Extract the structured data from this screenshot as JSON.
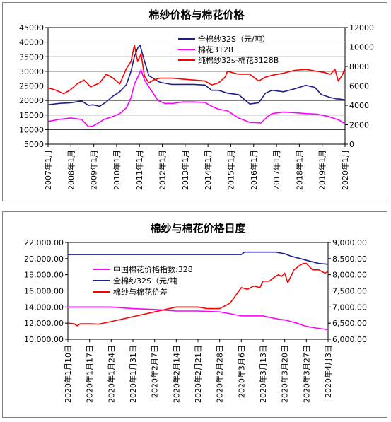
{
  "colors": {
    "navy": "#1f1f8c",
    "magenta": "#ff00ff",
    "red": "#ff0000",
    "axis": "#000000",
    "grid": "#000000"
  },
  "chart_data": [
    {
      "type": "line",
      "title": "棉纱价格与棉花价格",
      "x_tick_labels": [
        "2007年1月",
        "2008年1月",
        "2009年1月",
        "2010年1月",
        "2011年1月",
        "2012年1月",
        "2013年1月",
        "2014年1月",
        "2015年1月",
        "2016年1月",
        "2017年1月",
        "2018年1月",
        "2019年1月",
        "2020年1月"
      ],
      "y_left": {
        "ticks": [
          5000,
          10000,
          15000,
          20000,
          25000,
          30000,
          35000,
          40000,
          45000
        ],
        "ylim": [
          5000,
          45000
        ]
      },
      "y_right": {
        "ticks": [
          0,
          2000,
          4000,
          6000,
          8000,
          10000,
          12000
        ],
        "ylim": [
          0,
          12000
        ]
      },
      "legend_position": "top-right",
      "grid": "horizontal",
      "series": [
        {
          "name": "全棉纱32S（元/吨）",
          "axis": "left",
          "color": "#1f1f8c",
          "x": [
            2007.0,
            2007.5,
            2008.0,
            2008.5,
            2008.8,
            2009.0,
            2009.3,
            2009.6,
            2009.9,
            2010.2,
            2010.5,
            2010.7,
            2010.85,
            2011.0,
            2011.1,
            2011.3,
            2011.5,
            2011.8,
            2012.0,
            2012.5,
            2013.0,
            2013.5,
            2014.0,
            2014.3,
            2014.6,
            2015.0,
            2015.5,
            2016.0,
            2016.4,
            2016.7,
            2017.0,
            2017.5,
            2018.0,
            2018.5,
            2018.9,
            2019.2,
            2019.6,
            2019.9,
            2020.0,
            2020.25
          ],
          "y": [
            18500,
            19000,
            19200,
            19800,
            18300,
            18500,
            18000,
            19500,
            21500,
            23000,
            25500,
            30000,
            35000,
            38000,
            39000,
            33500,
            28500,
            27000,
            26200,
            25500,
            25500,
            25500,
            25300,
            23500,
            23500,
            22500,
            22000,
            18800,
            19200,
            22500,
            23500,
            23000,
            24000,
            25200,
            24500,
            22000,
            21000,
            20500,
            20500,
            20200
          ]
        },
        {
          "name": "棉花3128",
          "axis": "left",
          "color": "#ff00ff",
          "x": [
            2007.0,
            2007.5,
            2008.0,
            2008.5,
            2008.8,
            2009.0,
            2009.5,
            2009.9,
            2010.2,
            2010.5,
            2010.7,
            2010.85,
            2011.0,
            2011.15,
            2011.3,
            2011.6,
            2011.9,
            2012.2,
            2012.6,
            2013.0,
            2013.5,
            2014.0,
            2014.3,
            2014.6,
            2015.0,
            2015.5,
            2016.0,
            2016.5,
            2016.8,
            2017.0,
            2017.5,
            2018.0,
            2018.5,
            2019.0,
            2019.5,
            2019.9,
            2020.0,
            2020.25
          ],
          "y": [
            12800,
            13500,
            14000,
            13500,
            11000,
            11200,
            13500,
            14500,
            15500,
            17500,
            21000,
            25500,
            28000,
            30500,
            27000,
            23500,
            20000,
            19000,
            19000,
            19500,
            19500,
            19300,
            18000,
            17000,
            16500,
            14000,
            12500,
            12300,
            14500,
            15500,
            16000,
            15800,
            15500,
            15300,
            14500,
            13500,
            13200,
            12000
          ]
        },
        {
          "name": "纯棉纱32s-棉花3128B",
          "axis": "right",
          "color": "#ff0000",
          "x": [
            2007.0,
            2007.3,
            2007.7,
            2008.0,
            2008.3,
            2008.6,
            2008.9,
            2009.0,
            2009.3,
            2009.6,
            2009.9,
            2010.2,
            2010.5,
            2010.7,
            2010.85,
            2011.0,
            2011.15,
            2011.3,
            2011.5,
            2011.7,
            2012.0,
            2012.5,
            2013.0,
            2013.5,
            2014.0,
            2014.3,
            2014.6,
            2014.9,
            2015.0,
            2015.5,
            2016.0,
            2016.4,
            2016.7,
            2017.0,
            2017.5,
            2018.0,
            2018.5,
            2019.0,
            2019.3,
            2019.6,
            2019.8,
            2019.95,
            2020.1,
            2020.25
          ],
          "y": [
            5800,
            5600,
            5200,
            5600,
            6200,
            6600,
            5900,
            6000,
            6300,
            7200,
            6800,
            6200,
            7800,
            8500,
            10200,
            8500,
            9300,
            7000,
            6300,
            6600,
            6800,
            6800,
            6700,
            6600,
            6500,
            6100,
            6300,
            6900,
            7500,
            7200,
            7200,
            6500,
            6900,
            7100,
            7300,
            7600,
            7700,
            7500,
            7400,
            7200,
            7700,
            6500,
            7000,
            7800
          ]
        }
      ]
    },
    {
      "type": "line",
      "title": "棉纱与棉花价格日度",
      "x_tick_labels": [
        "2020年1月10日",
        "2020年1月17日",
        "2020年1月24日",
        "2020年1月31日",
        "2020年2月7日",
        "2020年2月14日",
        "2020年2月21日",
        "2020年2月28日",
        "2020年3月6日",
        "2020年3月13日",
        "2020年3月20日",
        "2020年3月27日",
        "2020年4月3日"
      ],
      "y_left": {
        "ticks": [
          "10,000.00",
          "12,000.00",
          "14,000.00",
          "16,000.00",
          "18,000.00",
          "20,000.00",
          "22,000.00"
        ],
        "ylim": [
          10000,
          22000
        ]
      },
      "y_right": {
        "ticks": [
          "6,000.00",
          "6,500.00",
          "7,000.00",
          "7,500.00",
          "8,000.00",
          "8,500.00",
          "9,000.00"
        ],
        "ylim": [
          6000,
          9000
        ]
      },
      "legend_position": "left-center",
      "grid": "none",
      "series": [
        {
          "name": "中国棉花价格指数:328",
          "axis": "left",
          "color": "#ff00ff",
          "x": [
            0,
            14,
            21,
            28,
            35,
            42,
            49,
            52,
            56,
            63,
            68,
            70,
            74,
            77,
            80,
            84
          ],
          "y": [
            14000,
            14000,
            13800,
            13700,
            13500,
            13500,
            13400,
            13200,
            12900,
            12900,
            12500,
            12400,
            12000,
            11600,
            11400,
            11200
          ]
        },
        {
          "name": "全棉纱32S（元/吨",
          "axis": "left",
          "color": "#1f1f8c",
          "x": [
            0,
            56,
            57,
            67,
            70,
            72,
            75,
            78,
            81,
            84
          ],
          "y": [
            20500,
            20500,
            20800,
            20800,
            20600,
            20300,
            20000,
            19700,
            19400,
            19300
          ]
        },
        {
          "name": "棉纱与棉花价差",
          "axis": "right",
          "color": "#ff0000",
          "x": [
            0,
            2,
            3,
            4,
            7,
            10,
            14,
            21,
            28,
            35,
            42,
            45,
            49,
            52,
            53,
            56,
            58,
            60,
            62,
            63,
            65,
            67,
            68,
            69,
            70,
            71,
            73,
            75,
            76,
            77,
            79,
            81,
            83,
            84
          ],
          "y": [
            6500,
            6480,
            6420,
            6480,
            6480,
            6470,
            6550,
            6700,
            6850,
            7000,
            7000,
            6950,
            6950,
            7100,
            7200,
            7600,
            7550,
            7650,
            7600,
            7800,
            7800,
            7950,
            8000,
            7950,
            8050,
            7750,
            8150,
            8300,
            8350,
            8350,
            8150,
            8150,
            8050,
            8100
          ]
        }
      ]
    }
  ]
}
